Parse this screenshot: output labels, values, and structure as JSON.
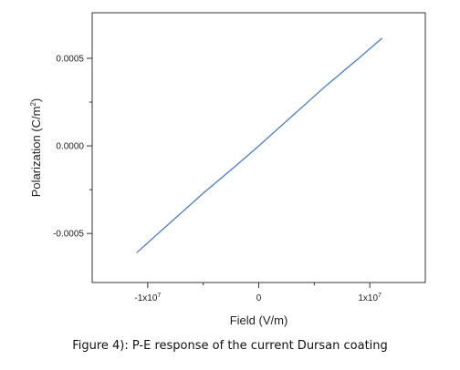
{
  "chart_data": {
    "type": "line",
    "xlabel_main": "Field (V/m)",
    "ylabel_main": "Polarization (C/m",
    "ylabel_sup": "2",
    "ylabel_end": ")",
    "xlim": [
      -15000000,
      15000000
    ],
    "ylim": [
      -0.00078,
      0.00076
    ],
    "x_ticks": [
      {
        "value": -10000000,
        "base": "-1x10",
        "exp": "7"
      },
      {
        "value": 0,
        "base": "0",
        "exp": ""
      },
      {
        "value": 10000000,
        "base": "1x10",
        "exp": "7"
      }
    ],
    "y_ticks": [
      {
        "value": 0.0005,
        "label": "0.0005"
      },
      {
        "value": 0.0,
        "label": "0.0000"
      },
      {
        "value": -0.0005,
        "label": "-0.0005"
      }
    ],
    "series": [
      {
        "color": "#4a7fc1",
        "x": [
          -11000000,
          -8000000,
          -5000000,
          -2000000,
          0,
          3000000,
          6000000,
          9000000,
          11100000
        ],
        "y": [
          -0.00061,
          -0.00044,
          -0.00027,
          -0.00011,
          0.0,
          0.00017,
          0.00034,
          0.0005,
          0.000615
        ]
      }
    ],
    "grid": false,
    "legend": "none"
  },
  "caption": "Figure 4): P-E response of the current Dursan coating"
}
